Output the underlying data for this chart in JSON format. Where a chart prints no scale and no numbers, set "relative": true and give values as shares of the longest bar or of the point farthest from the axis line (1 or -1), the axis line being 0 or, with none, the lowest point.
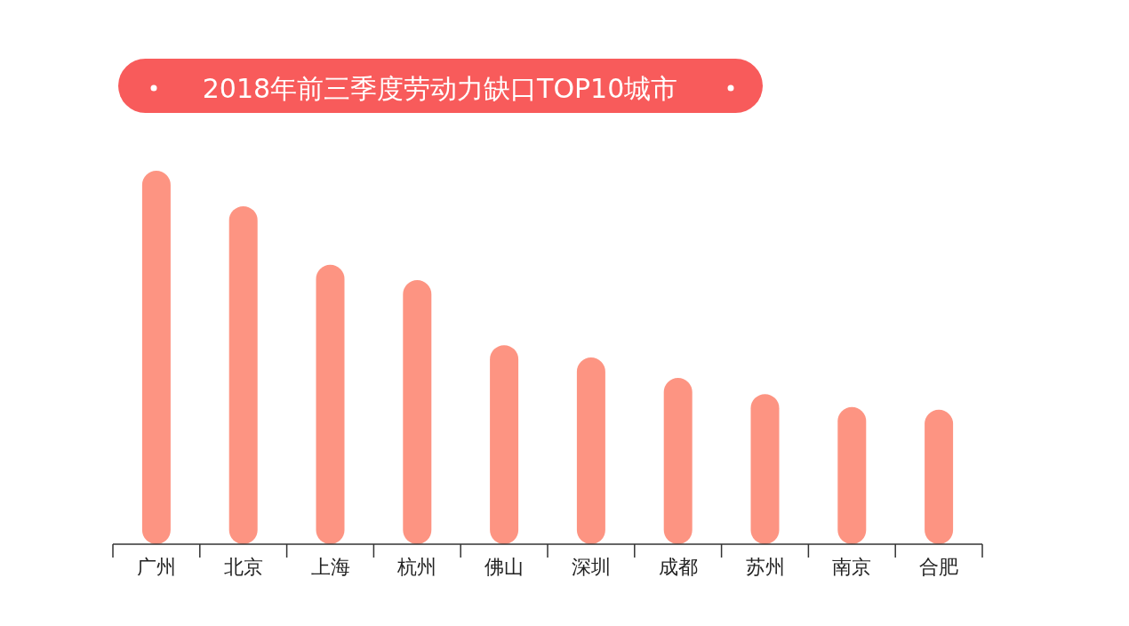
{
  "chart_data": {
    "type": "bar",
    "title": "2018年前三季度劳动力缺口TOP10城市",
    "categories": [
      "广州",
      "北京",
      "上海",
      "杭州",
      "佛山",
      "深圳",
      "成都",
      "苏州",
      "南京",
      "合肥"
    ],
    "values": [
      1,
      0.905,
      0.748,
      0.707,
      0.533,
      0.5,
      0.445,
      0.402,
      0.367,
      0.36
    ],
    "color": "#fd9482",
    "relative": true
  }
}
